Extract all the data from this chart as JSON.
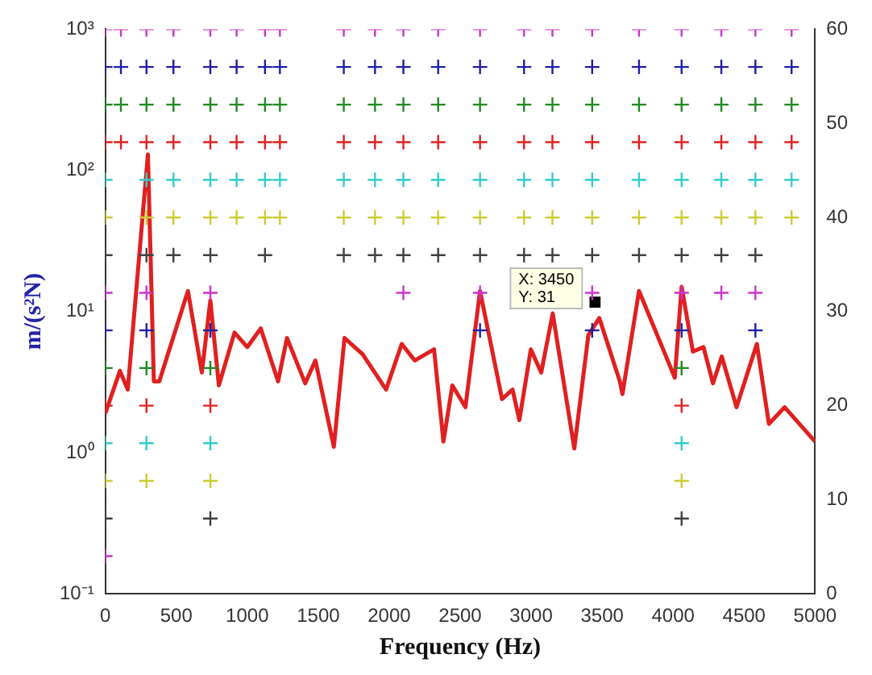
{
  "chart_data": {
    "type": "line",
    "xlabel": "Frequency (Hz)",
    "ylabel": "m/(s²N)",
    "log": "y",
    "grid": false,
    "legend": false,
    "xlim": [
      0,
      5000
    ],
    "xticks": [
      0,
      500,
      1000,
      1500,
      2000,
      2500,
      3000,
      3500,
      4000,
      4500,
      5000
    ],
    "ylim": [
      0.1,
      1000
    ],
    "yticks": [
      {
        "value": 0.1,
        "label": "10⁻¹"
      },
      {
        "value": 1,
        "label": "10⁰"
      },
      {
        "value": 10,
        "label": "10¹"
      },
      {
        "value": 100,
        "label": "10²"
      },
      {
        "value": 1000,
        "label": "10³"
      }
    ],
    "y2lim": [
      0,
      60
    ],
    "y2ticks": [
      0,
      10,
      20,
      30,
      40,
      50,
      60
    ],
    "annotations": [
      {
        "text": "X: 3450\nY: 31",
        "x": 3450,
        "y": 31
      }
    ],
    "series": [
      {
        "type": "scatter",
        "axis": "y2",
        "marker": "cross",
        "color": "#cc33cc",
        "x": [
          0,
          110,
          290,
          480,
          740,
          925,
          1125,
          1230,
          1680,
          1900,
          2100,
          2345,
          2640,
          2950,
          3150,
          3430,
          3760,
          4060,
          4340,
          4580,
          4835
        ],
        "values": [
          60,
          60,
          60,
          60,
          60,
          60,
          60,
          60,
          60,
          60,
          60,
          60,
          60,
          60,
          60,
          60,
          60,
          60,
          60,
          60,
          60
        ]
      },
      {
        "type": "scatter",
        "axis": "y2",
        "marker": "cross",
        "color": "#1f1fa8",
        "x": [
          0,
          110,
          290,
          480,
          740,
          925,
          1125,
          1230,
          1680,
          1900,
          2100,
          2345,
          2640,
          2950,
          3150,
          3430,
          3760,
          4060,
          4340,
          4580,
          4835
        ],
        "values": [
          56,
          56,
          56,
          56,
          56,
          56,
          56,
          56,
          56,
          56,
          56,
          56,
          56,
          56,
          56,
          56,
          56,
          56,
          56,
          56,
          56
        ]
      },
      {
        "type": "scatter",
        "axis": "y2",
        "marker": "cross",
        "color": "#1f8a1f",
        "x": [
          0,
          110,
          290,
          480,
          740,
          925,
          1125,
          1230,
          1680,
          1900,
          2100,
          2345,
          2640,
          2950,
          3150,
          3430,
          3760,
          4060,
          4340,
          4580,
          4835
        ],
        "values": [
          52,
          52,
          52,
          52,
          52,
          52,
          52,
          52,
          52,
          52,
          52,
          52,
          52,
          52,
          52,
          52,
          52,
          52,
          52,
          52,
          52
        ]
      },
      {
        "type": "scatter",
        "axis": "y2",
        "marker": "cross",
        "color": "#e02020",
        "x": [
          0,
          110,
          290,
          480,
          740,
          925,
          1125,
          1230,
          1680,
          1900,
          2100,
          2345,
          2640,
          2950,
          3150,
          3430,
          3760,
          4060,
          4340,
          4580,
          4835
        ],
        "values": [
          48,
          48,
          48,
          48,
          48,
          48,
          48,
          48,
          48,
          48,
          48,
          48,
          48,
          48,
          48,
          48,
          48,
          48,
          48,
          48,
          48
        ]
      },
      {
        "type": "scatter",
        "axis": "y2",
        "marker": "cross",
        "color": "#33cccc",
        "x": [
          0,
          290,
          480,
          740,
          925,
          1125,
          1230,
          1680,
          1900,
          2100,
          2345,
          2640,
          2950,
          3150,
          3430,
          3760,
          4060,
          4340,
          4580,
          4835
        ],
        "values": [
          44,
          44,
          44,
          44,
          44,
          44,
          44,
          44,
          44,
          44,
          44,
          44,
          44,
          44,
          44,
          44,
          44,
          44,
          44,
          44
        ]
      },
      {
        "type": "scatter",
        "axis": "y2",
        "marker": "cross",
        "color": "#cccc33",
        "x": [
          0,
          290,
          480,
          740,
          925,
          1125,
          1230,
          1680,
          1900,
          2100,
          2345,
          2640,
          2950,
          3150,
          3430,
          3760,
          4060,
          4340,
          4580,
          4835
        ],
        "values": [
          40,
          40,
          40,
          40,
          40,
          40,
          40,
          40,
          40,
          40,
          40,
          40,
          40,
          40,
          40,
          40,
          40,
          40,
          40,
          40
        ]
      },
      {
        "type": "scatter",
        "axis": "y2",
        "marker": "cross",
        "color": "#404040",
        "x": [
          0,
          290,
          480,
          740,
          1125,
          1680,
          1900,
          2100,
          2345,
          2640,
          2950,
          3150,
          3430,
          3760,
          4060,
          4340,
          4580
        ],
        "values": [
          36,
          36,
          36,
          36,
          36,
          36,
          36,
          36,
          36,
          36,
          36,
          36,
          36,
          36,
          36,
          36,
          36
        ]
      },
      {
        "type": "scatter",
        "axis": "y2",
        "marker": "cross",
        "color": "#cc33cc",
        "x": [
          0,
          290,
          740,
          2100,
          2640,
          3430,
          4060,
          4340,
          4580
        ],
        "values": [
          32,
          32,
          32,
          32,
          32,
          32,
          32,
          32,
          32
        ]
      },
      {
        "type": "scatter",
        "axis": "y2",
        "marker": "cross",
        "color": "#1f1fa8",
        "x": [
          0,
          290,
          740,
          2640,
          3430,
          4060,
          4580
        ],
        "values": [
          28,
          28,
          28,
          28,
          28,
          28,
          28
        ]
      },
      {
        "type": "scatter",
        "axis": "y2",
        "marker": "cross",
        "color": "#1f8a1f",
        "x": [
          0,
          290,
          740,
          4060
        ],
        "values": [
          24,
          24,
          24,
          24
        ]
      },
      {
        "type": "scatter",
        "axis": "y2",
        "marker": "cross",
        "color": "#e02020",
        "x": [
          0,
          290,
          740,
          4060
        ],
        "values": [
          20,
          20,
          20,
          20
        ]
      },
      {
        "type": "scatter",
        "axis": "y2",
        "marker": "cross",
        "color": "#33cccc",
        "x": [
          0,
          290,
          740,
          4060
        ],
        "values": [
          16,
          16,
          16,
          16
        ]
      },
      {
        "type": "scatter",
        "axis": "y2",
        "marker": "cross",
        "color": "#cccc33",
        "x": [
          0,
          290,
          740,
          4060
        ],
        "values": [
          12,
          12,
          12,
          12
        ]
      },
      {
        "type": "scatter",
        "axis": "y2",
        "marker": "cross",
        "color": "#404040",
        "x": [
          0,
          740,
          4060
        ],
        "values": [
          8,
          8,
          8
        ]
      },
      {
        "type": "scatter",
        "axis": "y2",
        "marker": "cross",
        "color": "#cc33cc",
        "x": [
          0
        ],
        "values": [
          4
        ]
      },
      {
        "type": "scatter",
        "axis": "y2",
        "marker": "square",
        "color": "#000000",
        "x": [
          3450
        ],
        "values": [
          31
        ]
      },
      {
        "type": "line",
        "marker": "none",
        "color": "#e02020",
        "x": [
          0,
          103,
          158,
          300,
          342,
          380,
          582,
          680,
          740,
          800,
          910,
          1000,
          1095,
          1217,
          1280,
          1408,
          1480,
          1610,
          1685,
          1812,
          1978,
          2088,
          2180,
          2316,
          2382,
          2445,
          2537,
          2640,
          2795,
          2869,
          2917,
          2998,
          3071,
          3152,
          3304,
          3403,
          3480,
          3625,
          3643,
          3760,
          4012,
          4060,
          4140,
          4214,
          4281,
          4343,
          4447,
          4590,
          4675,
          4786,
          5000
        ],
        "values": [
          1.9,
          3.8,
          2.8,
          130,
          3.2,
          3.2,
          14,
          3.7,
          12,
          3,
          7.1,
          5.6,
          7.6,
          3.2,
          6.5,
          3.1,
          4.5,
          1.1,
          6.5,
          5,
          2.8,
          5.9,
          4.5,
          5.4,
          1.2,
          3,
          2.1,
          14,
          2.4,
          2.8,
          1.7,
          5.4,
          3.7,
          9.7,
          1.07,
          6.8,
          9,
          3.2,
          2.6,
          14,
          3.4,
          15,
          5.2,
          5.6,
          3.1,
          4.8,
          2.1,
          5.9,
          1.6,
          2.1,
          1.2
        ]
      }
    ]
  }
}
